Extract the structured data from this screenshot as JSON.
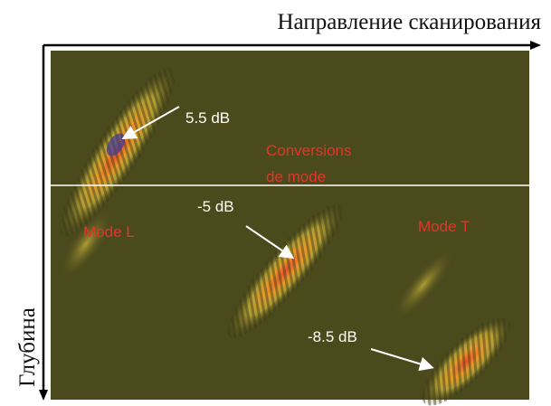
{
  "header": {
    "title": "Направление сканирования"
  },
  "axis": {
    "depth": "Глубина"
  },
  "annotations": {
    "amp_1": "5.5 dB",
    "conversions_1": "Conversions",
    "conversions_2": "de mode",
    "mode_l": "Mode L",
    "amp_2": "-5 dB",
    "mode_t": "Mode T",
    "amp_3": "-8.5 dB"
  }
}
